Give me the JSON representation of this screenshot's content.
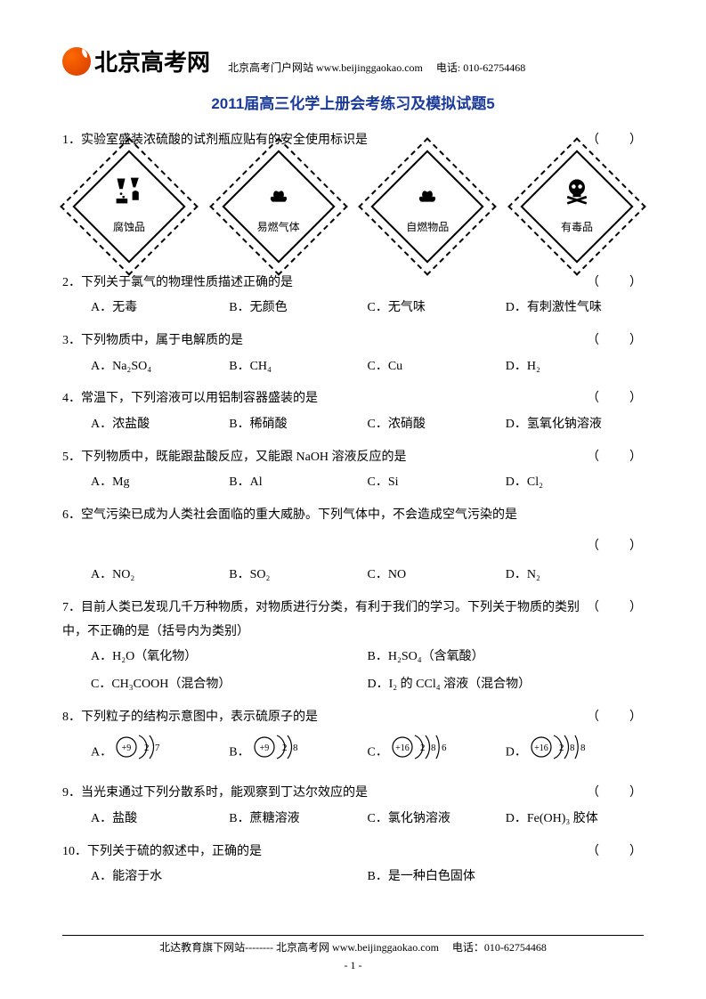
{
  "header": {
    "logo_text": "北京高考网",
    "subtitle": "北京高考门户网站 www.beijinggaokao.com　 电话: 010-62754468"
  },
  "title": "2011届高三化学上册会考练习及模拟试题5",
  "questions": [
    {
      "num": "1．",
      "text": "实验室盛装浓硫酸的试剂瓶应贴有的安全使用标识是",
      "type": "diamonds"
    },
    {
      "num": "2．",
      "text": "下列关于氯气的物理性质描述正确的是",
      "options": [
        "A．无毒",
        "B．无颜色",
        "C．无气味",
        "D．有刺激性气味"
      ]
    },
    {
      "num": "3．",
      "text": "下列物质中，属于电解质的是",
      "options": [
        "A．Na₂SO₄",
        "B．CH₄",
        "C．Cu",
        "D．H₂"
      ]
    },
    {
      "num": "4．",
      "text": "常温下，下列溶液可以用铝制容器盛装的是",
      "options": [
        "A．浓盐酸",
        "B．稀硝酸",
        "C．浓硝酸",
        "D．氢氧化钠溶液"
      ]
    },
    {
      "num": "5．",
      "text": "下列物质中，既能跟盐酸反应，又能跟 NaOH 溶液反应的是",
      "options": [
        "A．Mg",
        "B．Al",
        "C．Si",
        "D．Cl₂"
      ]
    },
    {
      "num": "6．",
      "text": "空气污染已成为人类社会面临的重大威胁。下列气体中，不会造成空气污染的是",
      "standalone_blank": true,
      "options": [
        "A．NO₂",
        "B．SO₂",
        "C．NO",
        "D．N₂"
      ]
    },
    {
      "num": "7．",
      "text": "目前人类已发现几千万种物质，对物质进行分类，有利于我们的学习。下列关于物质的类别中，不正确的是（括号内为类别）",
      "options2": [
        [
          "A．H₂O（氧化物）",
          "B．H₂SO₄（含氧酸）"
        ],
        [
          "C．CH₃COOH（混合物）",
          "D．I₂ 的 CCl₄ 溶液（混合物）"
        ]
      ]
    },
    {
      "num": "8．",
      "text": "下列粒子的结构示意图中，表示硫原子的是",
      "type": "atoms"
    },
    {
      "num": "9．",
      "text": "当光束通过下列分散系时，能观察到丁达尔效应的是",
      "options": [
        "A．盐酸",
        "B．蔗糖溶液",
        "C．氯化钠溶液",
        "D．Fe(OH)₃ 胶体"
      ]
    },
    {
      "num": "10．",
      "text": "下列关于硫的叙述中，正确的是",
      "options2": [
        [
          "A．能溶于水",
          "B．是一种白色固体"
        ]
      ]
    }
  ],
  "diamonds": [
    {
      "label": "腐蚀品",
      "icon": "corrosive"
    },
    {
      "label": "易燃气体",
      "icon": "flame"
    },
    {
      "label": "自燃物品",
      "icon": "flame"
    },
    {
      "label": "有毒品",
      "icon": "skull"
    }
  ],
  "atoms": [
    {
      "label": "A．",
      "core": "+9",
      "shells": [
        "2",
        "7"
      ]
    },
    {
      "label": "B．",
      "core": "+9",
      "shells": [
        "2",
        "8"
      ]
    },
    {
      "label": "C．",
      "core": "+16",
      "shells": [
        "2",
        "8",
        "6"
      ]
    },
    {
      "label": "D．",
      "core": "+16",
      "shells": [
        "2",
        "8",
        "8"
      ]
    }
  ],
  "blank_marker": "（　　）",
  "footer": "北达教育旗下网站-------- 北京高考网 www.beijinggaokao.com　 电话：010-62754468",
  "pagenum": "- 1 -"
}
